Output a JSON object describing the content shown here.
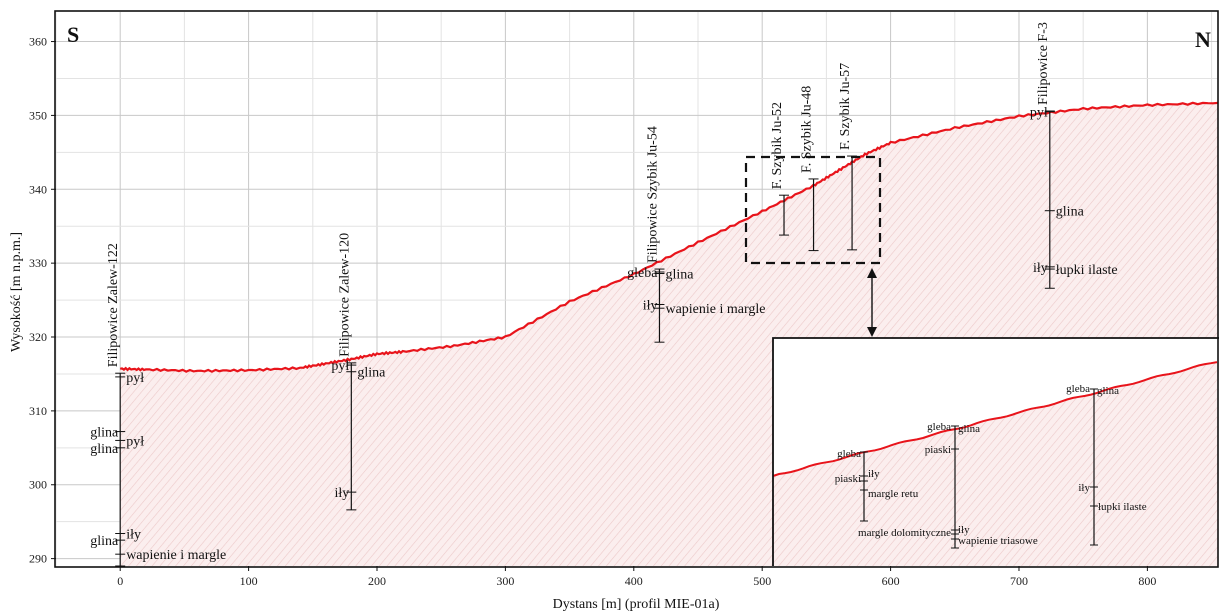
{
  "chart_data": {
    "type": "line",
    "title": "",
    "xlabel": "Dystans [m] (profil MIE-01a)",
    "ylabel": "Wysokość [m n.p.m.]",
    "xlim": [
      -50,
      855
    ],
    "ylim": [
      289,
      364
    ],
    "x_ticks": [
      "0",
      "100",
      "200",
      "300",
      "400",
      "500",
      "600",
      "700",
      "800"
    ],
    "y_ticks": [
      "290",
      "300",
      "310",
      "320",
      "330",
      "340",
      "350",
      "360"
    ],
    "grid": true,
    "corner_labels": {
      "left": "S",
      "right": "N"
    },
    "series": [
      {
        "x": [
          0,
          20,
          60,
          100,
          140,
          160,
          180,
          200,
          220,
          260,
          300,
          350,
          400,
          450,
          500,
          540,
          560,
          580,
          600,
          650,
          700,
          750,
          800,
          855
        ],
        "y": [
          315.7,
          315.6,
          315.4,
          315.5,
          315.8,
          316.4,
          317.0,
          317.7,
          318.0,
          318.8,
          320.0,
          324.8,
          328.5,
          332.8,
          337.0,
          340.5,
          342.6,
          344.7,
          346.3,
          348.3,
          349.9,
          350.9,
          351.4,
          351.7
        ]
      }
    ],
    "wells": [
      {
        "name": "Filipowice Zalew-122",
        "x": 0,
        "top": 315.1,
        "bottom": 289.0,
        "layers": [
          {
            "label": "pył",
            "y": 314.6
          },
          {
            "label": "glina",
            "y": 307.2
          },
          {
            "label": "pył",
            "y": 306.0
          },
          {
            "label": "glina",
            "y": 305.0
          },
          {
            "label": "glina",
            "y": 292.5
          },
          {
            "label": "iły",
            "y": 293.4
          },
          {
            "label": "wapienie i margle",
            "y": 290.6
          }
        ]
      },
      {
        "name": "Filipowice Zalew-120",
        "x": 180,
        "top": 316.5,
        "bottom": 296.6,
        "layers": [
          {
            "label": "pył",
            "y": 316.2
          },
          {
            "label": "glina",
            "y": 315.3
          },
          {
            "label": "iły",
            "y": 299.0
          }
        ]
      },
      {
        "name": "Filipowice Szybik Ju-54",
        "x": 420,
        "top": 329.2,
        "bottom": 319.3,
        "layers": [
          {
            "label": "gleba",
            "y": 328.8
          },
          {
            "label": "glina",
            "y": 328.6
          },
          {
            "label": "iły",
            "y": 324.4
          },
          {
            "label": "wapienie i margle",
            "y": 323.9
          }
        ]
      },
      {
        "name": "F. Szybik Ju-52",
        "x": 517,
        "top": 339.2,
        "bottom": 333.8,
        "layers": []
      },
      {
        "name": "F. Szybik Ju-48",
        "x": 540,
        "top": 341.4,
        "bottom": 331.7,
        "layers": []
      },
      {
        "name": "F. Szybik Ju-57",
        "x": 570,
        "top": 344.5,
        "bottom": 331.8,
        "layers": []
      },
      {
        "name": "Filipowice F-3",
        "x": 724,
        "top": 350.6,
        "bottom": 326.6,
        "layers": [
          {
            "label": "pył",
            "y": 350.5
          },
          {
            "label": "glina",
            "y": 337.1
          },
          {
            "label": "iły",
            "y": 329.5
          },
          {
            "label": "łupki ilaste",
            "y": 329.2
          }
        ]
      }
    ],
    "inset": {
      "layers": [
        {
          "label": "gleba",
          "side": "left"
        },
        {
          "label": "piaski",
          "side": "left"
        },
        {
          "label": "iły",
          "side": "right"
        },
        {
          "label": "margle retu",
          "side": "right"
        },
        {
          "label": "gleba",
          "side": "left"
        },
        {
          "label": "glina",
          "side": "right"
        },
        {
          "label": "piaski",
          "side": "left"
        },
        {
          "label": "margle dolomityczne",
          "side": "left"
        },
        {
          "label": "iły",
          "side": "right"
        },
        {
          "label": "wapienie triasowe",
          "side": "right"
        },
        {
          "label": "gleba",
          "side": "left"
        },
        {
          "label": "glina",
          "side": "right"
        },
        {
          "label": "iły",
          "side": "left"
        },
        {
          "label": "łupki ilaste",
          "side": "right"
        }
      ]
    },
    "colors": {
      "profile": "#e8141b",
      "fill": "#f6dede",
      "axis": "#111111",
      "grid": "#cfcfcf"
    }
  }
}
